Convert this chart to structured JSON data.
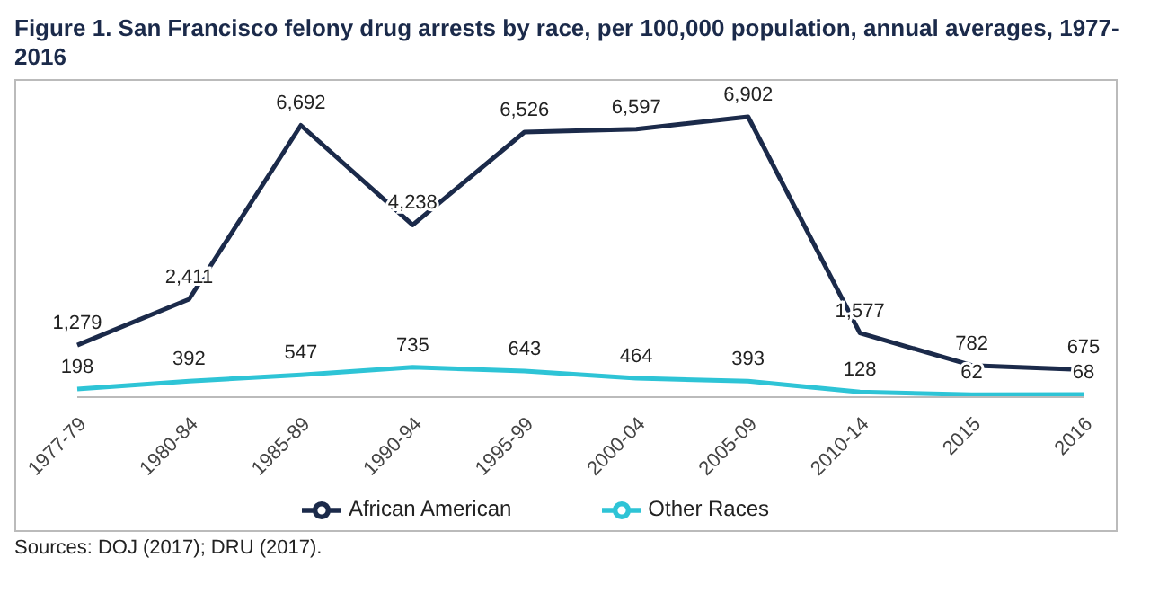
{
  "chart_data": {
    "type": "line",
    "title": "Figure 1. San Francisco felony drug arrests by race, per 100,000 population, annual averages, 1977-2016",
    "categories": [
      "1977-79",
      "1980-84",
      "1985-89",
      "1990-94",
      "1995-99",
      "2000-04",
      "2005-09",
      "2010-14",
      "2015",
      "2016"
    ],
    "series": [
      {
        "name": "African American",
        "color": "#1b2a4a",
        "values": [
          1279,
          2411,
          6692,
          4238,
          6526,
          6597,
          6902,
          1577,
          782,
          675
        ],
        "value_labels": [
          "1,279",
          "2,411",
          "6,692",
          "4,238",
          "6,526",
          "6,597",
          "6,902",
          "1,577",
          "782",
          "675"
        ]
      },
      {
        "name": "Other Races",
        "color": "#2ec4d6",
        "values": [
          198,
          392,
          547,
          735,
          643,
          464,
          393,
          128,
          62,
          68
        ],
        "value_labels": [
          "198",
          "392",
          "547",
          "735",
          "643",
          "464",
          "393",
          "128",
          "62",
          "68"
        ]
      }
    ],
    "legend": "bottom",
    "marker": "none",
    "tick_labels": "x",
    "annotations": [
      "Sources: DOJ (2017); DRU (2017)."
    ]
  }
}
